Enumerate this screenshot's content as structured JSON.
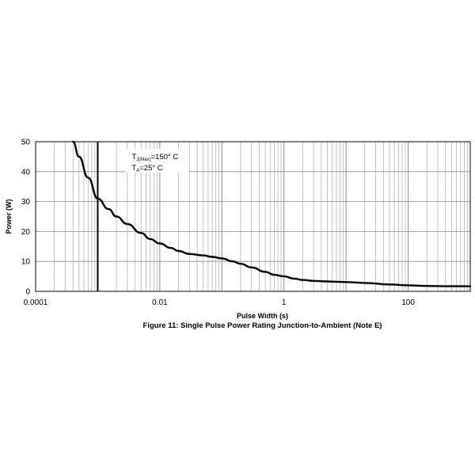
{
  "chart_data": {
    "type": "line",
    "title": "Figure 11: Single Pulse Power Rating Junction-to-Ambient (Note E)",
    "xlabel": "Pulse Width (s)",
    "ylabel": "Power (W)",
    "xscale": "log",
    "xlim": [
      0.0001,
      1000
    ],
    "ylim": [
      0,
      50
    ],
    "x_tick_labels": [
      "0.0001",
      "0.01",
      "1",
      "100"
    ],
    "y_tick_labels": [
      "0",
      "10",
      "20",
      "30",
      "40",
      "50"
    ],
    "y_ticks": [
      0,
      10,
      20,
      30,
      40,
      50
    ],
    "x_ticks": [
      0.0001,
      0.01,
      1,
      100
    ],
    "grid": true,
    "marker_line_x": 0.001,
    "annotation": {
      "line1_main": "T",
      "line1_sub": "J(Max)",
      "line1_rest": "=150° C",
      "line2_main": "T",
      "line2_sub": "A",
      "line2_rest": "=25° C"
    },
    "series": [
      {
        "x": [
          0.0004,
          0.0005,
          0.0007,
          0.001,
          0.0015,
          0.002,
          0.003,
          0.005,
          0.007,
          0.01,
          0.015,
          0.02,
          0.03,
          0.05,
          0.07,
          0.1,
          0.15,
          0.2,
          0.3,
          0.5,
          0.7,
          1,
          1.5,
          2,
          3,
          5,
          7,
          10,
          20,
          50,
          100,
          200,
          500,
          1000
        ],
        "values": [
          50,
          45,
          38,
          31,
          27.5,
          25,
          22.5,
          19.5,
          17.5,
          16,
          14.5,
          13.5,
          12.5,
          12,
          11.5,
          11,
          10,
          9.2,
          8,
          6.5,
          5.5,
          5,
          4.2,
          3.8,
          3.5,
          3.3,
          3.2,
          3.1,
          2.8,
          2.3,
          2,
          1.8,
          1.7,
          1.7
        ]
      }
    ]
  }
}
